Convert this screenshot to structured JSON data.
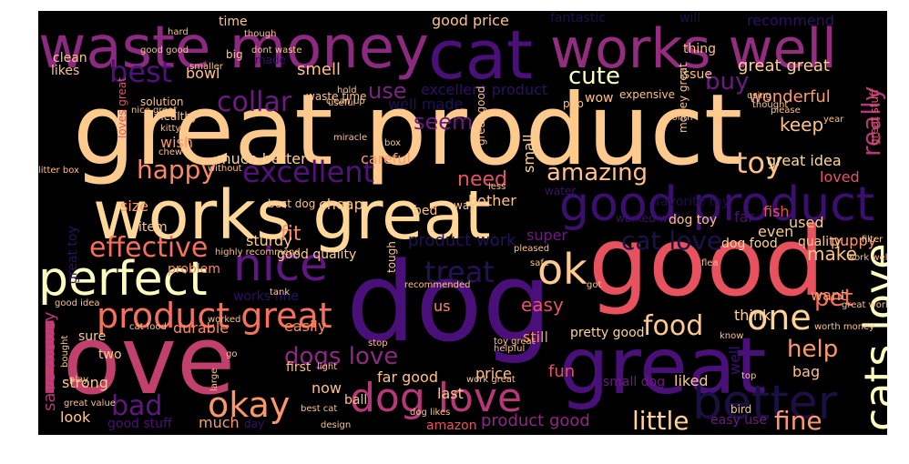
{
  "title": "",
  "colormap": "magma",
  "background_color": "#000000",
  "words": [
    {
      "text": "great product",
      "color": "#fec98d"
    },
    {
      "text": "dog",
      "color": "#4a1079"
    },
    {
      "text": "good",
      "color": "#e8525e"
    },
    {
      "text": "love",
      "color": "#c2406e"
    },
    {
      "text": "works great",
      "color": "#fed799"
    },
    {
      "text": "great",
      "color": "#4a1079"
    },
    {
      "text": "waste money",
      "color": "#8c2981"
    },
    {
      "text": "cat",
      "color": "#4a1079"
    },
    {
      "text": "works well",
      "color": "#942c80"
    },
    {
      "text": "good product",
      "color": "#3b0f70"
    },
    {
      "text": "better",
      "color": "#1a1042"
    },
    {
      "text": "cats love",
      "color": "#fcfdbf"
    },
    {
      "text": "perfect",
      "color": "#fcfdbf"
    },
    {
      "text": "nice",
      "color": "#5f187f"
    },
    {
      "text": "ok",
      "color": "#feca8d"
    },
    {
      "text": "product great",
      "color": "#f7705c"
    },
    {
      "text": "dog love",
      "color": "#b73779"
    },
    {
      "text": "okay",
      "color": "#fd9668"
    },
    {
      "text": "excellent",
      "color": "#51127c"
    },
    {
      "text": "effective",
      "color": "#f7705c"
    },
    {
      "text": "one",
      "color": "#fed395"
    },
    {
      "text": "best",
      "color": "#4f127b"
    },
    {
      "text": "collar",
      "color": "#6a1c81"
    },
    {
      "text": "happy",
      "color": "#fc8961"
    },
    {
      "text": "toy",
      "color": "#fec185"
    },
    {
      "text": "amazing",
      "color": "#fec287"
    },
    {
      "text": "cat love",
      "color": "#1d1147"
    },
    {
      "text": "treat",
      "color": "#251255"
    },
    {
      "text": "food",
      "color": "#fec98d"
    },
    {
      "text": "help",
      "color": "#fd9a6a"
    },
    {
      "text": "dogs love",
      "color": "#8c2981"
    },
    {
      "text": "bad",
      "color": "#5f187f"
    },
    {
      "text": "fine",
      "color": "#fd9a6a"
    },
    {
      "text": "little",
      "color": "#fed395"
    },
    {
      "text": "cute",
      "color": "#fcfdbf"
    },
    {
      "text": "buy",
      "color": "#6a1c81"
    },
    {
      "text": "use",
      "color": "#7b2382"
    },
    {
      "text": "seem",
      "color": "#6a1c81"
    },
    {
      "text": "really",
      "color": "#b73779"
    },
    {
      "text": "need",
      "color": "#e75263"
    },
    {
      "text": "pet",
      "color": "#f7705c"
    },
    {
      "text": "keep",
      "color": "#fec287"
    },
    {
      "text": "make",
      "color": "#fec287"
    },
    {
      "text": "easy",
      "color": "#e85362"
    },
    {
      "text": "fit",
      "color": "#fc8961"
    },
    {
      "text": "great great",
      "color": "#fecf92"
    },
    {
      "text": "smell",
      "color": "#fec287"
    },
    {
      "text": "wonderful",
      "color": "#fd9a6a"
    },
    {
      "text": "product work",
      "color": "#251255"
    },
    {
      "text": "save money",
      "color": "#b73779"
    },
    {
      "text": "product good",
      "color": "#8c2981"
    },
    {
      "text": "excellent product",
      "color": "#2c115f"
    },
    {
      "text": "well made",
      "color": "#221150"
    },
    {
      "text": "good price",
      "color": "#fec287"
    },
    {
      "text": "great idea",
      "color": "#fed799"
    },
    {
      "text": "loved",
      "color": "#e75263"
    },
    {
      "text": "used",
      "color": "#fec98d"
    },
    {
      "text": "recommend",
      "color": "#2c115f"
    },
    {
      "text": "fantastic",
      "color": "#1d1147"
    },
    {
      "text": "will",
      "color": "#1d1147"
    },
    {
      "text": "much better",
      "color": "#fed395"
    },
    {
      "text": "wish",
      "color": "#fd9a6a"
    },
    {
      "text": "careful",
      "color": "#fd9a6a"
    },
    {
      "text": "bother",
      "color": "#fec287"
    },
    {
      "text": "small",
      "color": "#fed395"
    },
    {
      "text": "cheap",
      "color": "#fec287"
    },
    {
      "text": "sturdy",
      "color": "#fec98d"
    },
    {
      "text": "good quality",
      "color": "#fec98d"
    },
    {
      "text": "puppy",
      "color": "#fd9a6a"
    },
    {
      "text": "quality",
      "color": "#fec98d"
    },
    {
      "text": "dog food",
      "color": "#fed799"
    },
    {
      "text": "super",
      "color": "#6a1c81"
    },
    {
      "text": "worked well",
      "color": "#3b0f70"
    },
    {
      "text": "far",
      "color": "#4a1079"
    },
    {
      "text": "even",
      "color": "#fec98d"
    },
    {
      "text": "want",
      "color": "#fd9a6a"
    },
    {
      "text": "think",
      "color": "#fed395"
    },
    {
      "text": "pretty good",
      "color": "#fed395"
    },
    {
      "text": "still",
      "color": "#fc8961"
    },
    {
      "text": "us",
      "color": "#fc8961"
    },
    {
      "text": "durable",
      "color": "#fc8961"
    },
    {
      "text": "works fine",
      "color": "#2c115f"
    },
    {
      "text": "easily",
      "color": "#fc8961"
    },
    {
      "text": "fun",
      "color": "#e75263"
    },
    {
      "text": "price",
      "color": "#fec287"
    },
    {
      "text": "far good",
      "color": "#fec287"
    },
    {
      "text": "last",
      "color": "#fec98d"
    },
    {
      "text": "now",
      "color": "#fec287"
    },
    {
      "text": "first",
      "color": "#fec287"
    },
    {
      "text": "ball",
      "color": "#fec287"
    },
    {
      "text": "strong",
      "color": "#fec98d"
    },
    {
      "text": "two",
      "color": "#fec98d"
    },
    {
      "text": "sure",
      "color": "#fec98d"
    },
    {
      "text": "look",
      "color": "#fec98d"
    },
    {
      "text": "good stuff",
      "color": "#4a1079"
    },
    {
      "text": "much",
      "color": "#fd9a6a"
    },
    {
      "text": "day",
      "color": "#3b0f70"
    },
    {
      "text": "liked",
      "color": "#fec98d"
    },
    {
      "text": "small dog",
      "color": "#6a1c81"
    },
    {
      "text": "bag",
      "color": "#fec287"
    },
    {
      "text": "well",
      "color": "#3b0f70"
    },
    {
      "text": "easy use",
      "color": "#6a1c81"
    },
    {
      "text": "bird",
      "color": "#fec98d"
    },
    {
      "text": "amazon",
      "color": "#e75263"
    },
    {
      "text": "size",
      "color": "#fd9a6a"
    },
    {
      "text": "item",
      "color": "#fec98d"
    },
    {
      "text": "problem",
      "color": "#fc8961"
    },
    {
      "text": "great toy",
      "color": "#2c115f"
    },
    {
      "text": "fish",
      "color": "#e75263"
    },
    {
      "text": "bed",
      "color": "#fec287"
    },
    {
      "text": "way",
      "color": "#fec287"
    },
    {
      "text": "favorite toy",
      "color": "#1d1147"
    },
    {
      "text": "dog toy",
      "color": "#fec287"
    },
    {
      "text": "time",
      "color": "#fec287"
    },
    {
      "text": "big",
      "color": "#fec98d"
    },
    {
      "text": "bowl",
      "color": "#fec287"
    },
    {
      "text": "clean",
      "color": "#fec287"
    },
    {
      "text": "likes",
      "color": "#fec287"
    },
    {
      "text": "solution",
      "color": "#fec287"
    },
    {
      "text": "waste time",
      "color": "#fec287"
    },
    {
      "text": "made",
      "color": "#3b0f70"
    },
    {
      "text": "pup",
      "color": "#fec287"
    },
    {
      "text": "issue",
      "color": "#fec287"
    },
    {
      "text": "thing",
      "color": "#fec287"
    },
    {
      "text": "wow",
      "color": "#fec287"
    },
    {
      "text": "expensive",
      "color": "#fec287"
    },
    {
      "text": "money great",
      "color": "#fec287"
    },
    {
      "text": "great stuff",
      "color": "#e75263"
    },
    {
      "text": "great good",
      "color": "#fec287"
    },
    {
      "text": "loves great",
      "color": "#e75263"
    },
    {
      "text": "healthy",
      "color": "#fec287"
    },
    {
      "text": "kitty",
      "color": "#fec287"
    },
    {
      "text": "water",
      "color": "#3b0f70"
    },
    {
      "text": "month",
      "color": "#fec287"
    },
    {
      "text": "year",
      "color": "#fec287"
    },
    {
      "text": "please",
      "color": "#fec287"
    },
    {
      "text": "useful",
      "color": "#fec287"
    },
    {
      "text": "miracle",
      "color": "#fec287"
    },
    {
      "text": "box",
      "color": "#fec287"
    },
    {
      "text": "hold",
      "color": "#fec287"
    },
    {
      "text": "less",
      "color": "#fec287"
    },
    {
      "text": "best dog",
      "color": "#fec287"
    },
    {
      "text": "tank",
      "color": "#fec287"
    },
    {
      "text": "cat food",
      "color": "#fec287"
    },
    {
      "text": "good idea",
      "color": "#fec287"
    },
    {
      "text": "worked",
      "color": "#fec287"
    },
    {
      "text": "pleased",
      "color": "#fec287"
    },
    {
      "text": "safe",
      "color": "#fec287"
    },
    {
      "text": "tough",
      "color": "#fec287"
    },
    {
      "text": "flea",
      "color": "#fec287"
    },
    {
      "text": "recommended",
      "color": "#fec287"
    },
    {
      "text": "got",
      "color": "#fec287"
    },
    {
      "text": "using",
      "color": "#fec287"
    },
    {
      "text": "thought",
      "color": "#fec287"
    },
    {
      "text": "filter",
      "color": "#fec287"
    },
    {
      "text": "work well",
      "color": "#fec287"
    },
    {
      "text": "great work",
      "color": "#fec287"
    },
    {
      "text": "worth money",
      "color": "#fec287"
    },
    {
      "text": "know",
      "color": "#fec287"
    },
    {
      "text": "helpful",
      "color": "#fec287"
    },
    {
      "text": "toy great",
      "color": "#fec287"
    },
    {
      "text": "work great",
      "color": "#fec287"
    },
    {
      "text": "light",
      "color": "#fec287"
    },
    {
      "text": "top",
      "color": "#fec287"
    },
    {
      "text": "dog likes",
      "color": "#fec287"
    },
    {
      "text": "design",
      "color": "#fec287"
    },
    {
      "text": "best cat",
      "color": "#fec287"
    },
    {
      "text": "large",
      "color": "#fec287"
    },
    {
      "text": "great value",
      "color": "#fec287"
    },
    {
      "text": "play",
      "color": "#fec287"
    },
    {
      "text": "bought",
      "color": "#fec287"
    },
    {
      "text": "highly recommend",
      "color": "#fec287"
    },
    {
      "text": "though",
      "color": "#fec287"
    },
    {
      "text": "hard",
      "color": "#fec287"
    },
    {
      "text": "chew",
      "color": "#fec287"
    },
    {
      "text": "without",
      "color": "#fec287"
    },
    {
      "text": "litter box",
      "color": "#fec287"
    },
    {
      "text": "dont waste",
      "color": "#fec287"
    },
    {
      "text": "stop",
      "color": "#fec287"
    },
    {
      "text": "go",
      "color": "#fec287"
    },
    {
      "text": "smaller",
      "color": "#fec287"
    },
    {
      "text": "good good",
      "color": "#fec287"
    },
    {
      "text": "nice great",
      "color": "#fec287"
    },
    {
      "text": "clean up",
      "color": "#fec287"
    }
  ]
}
